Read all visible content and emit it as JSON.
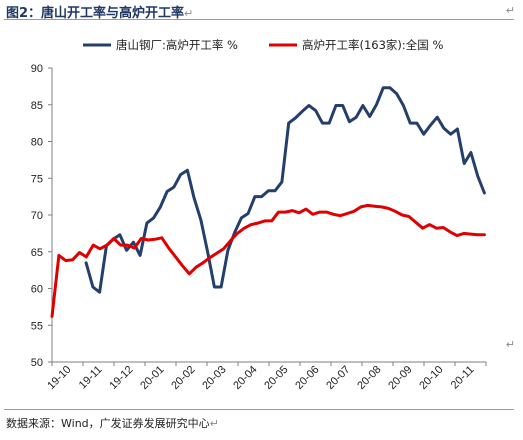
{
  "figure_title": "图2：唐山开工率与高炉开工率",
  "source_note": "数据来源：Wind，广发证券发展研究中心",
  "paragraph_mark": "↵",
  "colors": {
    "tangshan": "#243f6b",
    "national": "#e00000",
    "axis": "#7f7f7f"
  },
  "chart_data": {
    "type": "line",
    "title": "",
    "xlabel": "",
    "ylabel": "",
    "ylim": [
      50,
      90
    ],
    "yticks": [
      50,
      55,
      60,
      65,
      70,
      75,
      80,
      85,
      90
    ],
    "xticks": [
      "19-10",
      "19-11",
      "19-12",
      "20-01",
      "20-02",
      "20-03",
      "20-04",
      "20-05",
      "20-06",
      "20-07",
      "20-08",
      "20-09",
      "20-10",
      "20-11"
    ],
    "grid": false,
    "legend_position": "top",
    "series": [
      {
        "name": "唐山钢厂:高炉开工率 %",
        "color": "#243f6b",
        "values": [
          63.5,
          60.2,
          59.5,
          65.8,
          66.7,
          67.3,
          65.2,
          66.3,
          64.5,
          68.9,
          69.6,
          71.1,
          73.2,
          73.8,
          75.5,
          76.1,
          72.3,
          69.3,
          65.0,
          60.2,
          60.2,
          65.2,
          67.6,
          69.6,
          70.2,
          72.5,
          72.5,
          73.3,
          73.3,
          74.5,
          82.5,
          83.2,
          84.1,
          84.9,
          84.2,
          82.5,
          82.5,
          84.9,
          84.9,
          82.7,
          83.3,
          84.9,
          83.4,
          85.0,
          87.3,
          87.3,
          86.5,
          84.9,
          82.5,
          82.5,
          81.0,
          82.2,
          83.3,
          81.8,
          81.0,
          81.7,
          77.0,
          78.5,
          75.3,
          73.0
        ],
        "x_start": 1.1
      },
      {
        "name": "高炉开工率(163家):全国 %",
        "color": "#e00000",
        "values": [
          56.2,
          64.5,
          63.8,
          63.9,
          64.9,
          64.3,
          65.9,
          65.4,
          65.9,
          66.8,
          65.9,
          65.9,
          65.5,
          66.8,
          66.6,
          66.7,
          66.9,
          65.5,
          64.3,
          63.1,
          62.0,
          62.9,
          63.5,
          64.2,
          64.8,
          65.4,
          66.5,
          67.5,
          68.2,
          68.7,
          68.9,
          69.2,
          69.2,
          70.4,
          70.4,
          70.6,
          70.3,
          70.8,
          70.1,
          70.4,
          70.4,
          70.1,
          69.9,
          70.2,
          70.5,
          71.1,
          71.3,
          71.2,
          71.1,
          70.9,
          70.5,
          70.0,
          69.8,
          69.0,
          68.2,
          68.7,
          68.2,
          68.3,
          67.7,
          67.2,
          67.5,
          67.4,
          67.3,
          67.3
        ],
        "x_start": 0
      }
    ]
  }
}
